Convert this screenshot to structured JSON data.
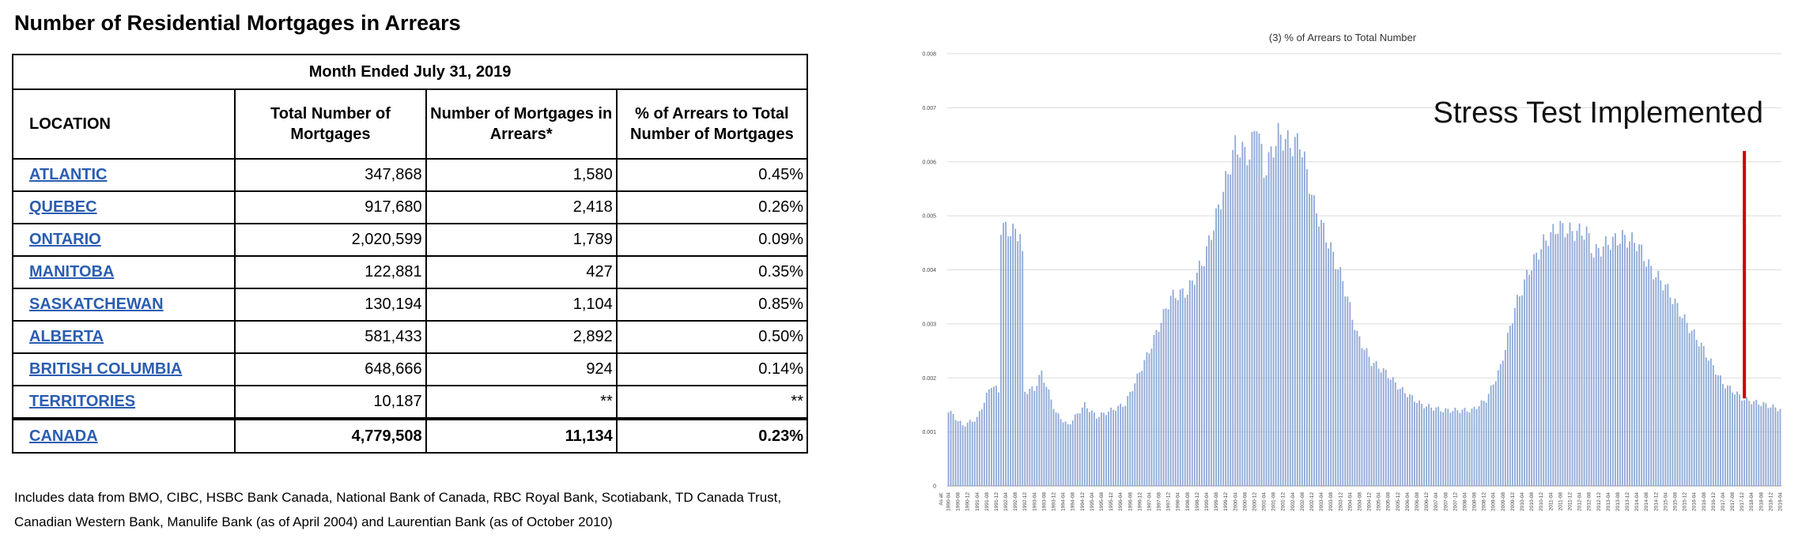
{
  "page_title": "Number of Residential Mortgages in Arrears",
  "table": {
    "month_header": "Month Ended July 31, 2019",
    "columns": [
      "LOCATION",
      "Total Number of Mortgages",
      "Number of Mortgages in Arrears*",
      "% of Arrears to Total Number of Mortgages"
    ],
    "rows": [
      {
        "location": "ATLANTIC",
        "total": "347,868",
        "arrears": "1,580",
        "pct": "0.45%"
      },
      {
        "location": "QUEBEC",
        "total": "917,680",
        "arrears": "2,418",
        "pct": "0.26%"
      },
      {
        "location": "ONTARIO",
        "total": "2,020,599",
        "arrears": "1,789",
        "pct": "0.09%"
      },
      {
        "location": "MANITOBA",
        "total": "122,881",
        "arrears": "427",
        "pct": "0.35%"
      },
      {
        "location": "SASKATCHEWAN",
        "total": "130,194",
        "arrears": "1,104",
        "pct": "0.85%"
      },
      {
        "location": "ALBERTA",
        "total": "581,433",
        "arrears": "2,892",
        "pct": "0.50%"
      },
      {
        "location": "BRITISH COLUMBIA",
        "total": "648,666",
        "arrears": "924",
        "pct": "0.14%"
      },
      {
        "location": "TERRITORIES",
        "total": "10,187",
        "arrears": "**",
        "pct": "**"
      }
    ],
    "total_row": {
      "location": "CANADA",
      "total": "4,779,508",
      "arrears": "11,134",
      "pct": "0.23%"
    }
  },
  "footnote": {
    "line1": "Includes data from BMO, CIBC, HSBC Bank Canada, National Bank of Canada, RBC Royal Bank, Scotiabank, TD Canada Trust,",
    "line2": "Canadian Western Bank, Manulife Bank (as of April 2004) and Laurentian Bank (as of October 2010)"
  },
  "chart_data": {
    "type": "bar",
    "title": "(3)  % of Arrears to  Total Number",
    "xlabel": "",
    "ylabel": "",
    "ylim": [
      0,
      0.008
    ],
    "yticks": [
      "0",
      "0.001",
      "0.002",
      "0.003",
      "0.004",
      "0.005",
      "0.006",
      "0.007",
      "0.008"
    ],
    "grid": true,
    "first_label": "As at:",
    "start": "1990-04",
    "end": "2019-04",
    "label_step_months": 4,
    "bar_color": "#8fa9d6",
    "annotation": {
      "text": "Stress Test Implemented",
      "at": "2018-01",
      "marker_color": "#d00000"
    },
    "anchors": [
      [
        "1990-04",
        0.0014
      ],
      [
        "1990-10",
        0.00112
      ],
      [
        "1991-04",
        0.00125
      ],
      [
        "1991-10",
        0.00188
      ],
      [
        "1992-01",
        0.00175
      ],
      [
        "1992-02",
        0.0048
      ],
      [
        "1992-06",
        0.00472
      ],
      [
        "1992-10",
        0.00468
      ],
      [
        "1992-11",
        0.0042
      ],
      [
        "1992-12",
        0.00175
      ],
      [
        "1993-04",
        0.0018
      ],
      [
        "1993-07",
        0.0021
      ],
      [
        "1994-01",
        0.00135
      ],
      [
        "1994-06",
        0.00112
      ],
      [
        "1995-01",
        0.0015
      ],
      [
        "1995-06",
        0.00128
      ],
      [
        "1996-06",
        0.00152
      ],
      [
        "1997-04",
        0.0025
      ],
      [
        "1998-01",
        0.0035
      ],
      [
        "1998-08",
        0.0036
      ],
      [
        "1999-03",
        0.0042
      ],
      [
        "1999-10",
        0.0053
      ],
      [
        "2000-04",
        0.0063
      ],
      [
        "2000-10",
        0.0061
      ],
      [
        "2001-01",
        0.0068
      ],
      [
        "2001-04",
        0.0058
      ],
      [
        "2001-10",
        0.0065
      ],
      [
        "2002-04",
        0.0063
      ],
      [
        "2002-07",
        0.0064
      ],
      [
        "2003-01",
        0.0052
      ],
      [
        "2003-07",
        0.0045
      ],
      [
        "2004-01",
        0.0038
      ],
      [
        "2004-07",
        0.0028
      ],
      [
        "2005-01",
        0.0023
      ],
      [
        "2005-07",
        0.0021
      ],
      [
        "2006-01",
        0.0018
      ],
      [
        "2006-10",
        0.0015
      ],
      [
        "2007-07",
        0.0014
      ],
      [
        "2008-07",
        0.0014
      ],
      [
        "2009-01",
        0.0016
      ],
      [
        "2009-07",
        0.0022
      ],
      [
        "2010-01",
        0.0033
      ],
      [
        "2010-07",
        0.004
      ],
      [
        "2011-01",
        0.0045
      ],
      [
        "2011-07",
        0.0048
      ],
      [
        "2012-01",
        0.0047
      ],
      [
        "2012-07",
        0.0047
      ],
      [
        "2012-10",
        0.0043
      ],
      [
        "2013-04",
        0.0045
      ],
      [
        "2013-10",
        0.0046
      ],
      [
        "2014-04",
        0.0045
      ],
      [
        "2014-10",
        0.004
      ],
      [
        "2015-04",
        0.0037
      ],
      [
        "2016-01",
        0.003
      ],
      [
        "2016-07",
        0.0026
      ],
      [
        "2017-04",
        0.0019
      ],
      [
        "2018-01",
        0.0016
      ],
      [
        "2018-10",
        0.0015
      ],
      [
        "2019-04",
        0.00142
      ]
    ]
  }
}
